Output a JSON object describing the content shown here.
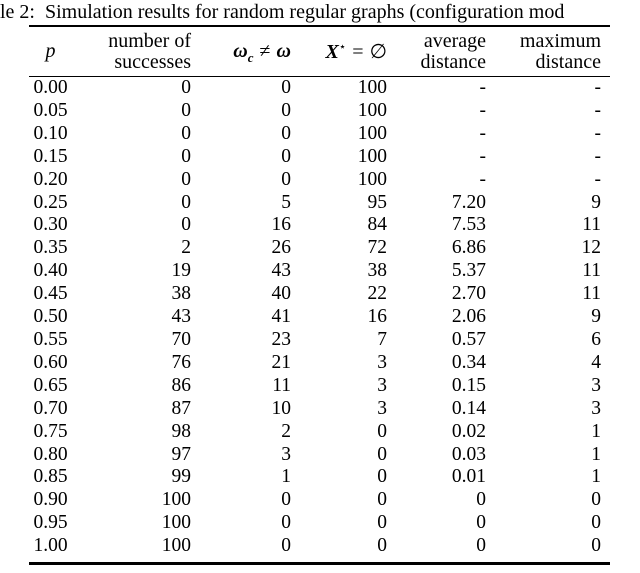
{
  "caption": "le 2:  Simulation results for random regular graphs (configuration mod",
  "table": {
    "headers": {
      "p": "p",
      "successes_line1": "number of",
      "successes_line2": "successes",
      "omega": {
        "lhs": "ω",
        "sub": "c",
        "op": "≠",
        "rhs": "ω"
      },
      "xstar": {
        "lhs": "X",
        "sup": "⋆",
        "op": "=",
        "rhs": "∅"
      },
      "avg_line1": "average",
      "avg_line2": "distance",
      "max_line1": "maximum",
      "max_line2": "distance"
    },
    "rows": [
      [
        "0.00",
        "0",
        "0",
        "100",
        "-",
        "-"
      ],
      [
        "0.05",
        "0",
        "0",
        "100",
        "-",
        "-"
      ],
      [
        "0.10",
        "0",
        "0",
        "100",
        "-",
        "-"
      ],
      [
        "0.15",
        "0",
        "0",
        "100",
        "-",
        "-"
      ],
      [
        "0.20",
        "0",
        "0",
        "100",
        "-",
        "-"
      ],
      [
        "0.25",
        "0",
        "5",
        "95",
        "7.20",
        "9"
      ],
      [
        "0.30",
        "0",
        "16",
        "84",
        "7.53",
        "11"
      ],
      [
        "0.35",
        "2",
        "26",
        "72",
        "6.86",
        "12"
      ],
      [
        "0.40",
        "19",
        "43",
        "38",
        "5.37",
        "11"
      ],
      [
        "0.45",
        "38",
        "40",
        "22",
        "2.70",
        "11"
      ],
      [
        "0.50",
        "43",
        "41",
        "16",
        "2.06",
        "9"
      ],
      [
        "0.55",
        "70",
        "23",
        "7",
        "0.57",
        "6"
      ],
      [
        "0.60",
        "76",
        "21",
        "3",
        "0.34",
        "4"
      ],
      [
        "0.65",
        "86",
        "11",
        "3",
        "0.15",
        "3"
      ],
      [
        "0.70",
        "87",
        "10",
        "3",
        "0.14",
        "3"
      ],
      [
        "0.75",
        "98",
        "2",
        "0",
        "0.02",
        "1"
      ],
      [
        "0.80",
        "97",
        "3",
        "0",
        "0.03",
        "1"
      ],
      [
        "0.85",
        "99",
        "1",
        "0",
        "0.01",
        "1"
      ],
      [
        "0.90",
        "100",
        "0",
        "0",
        "0",
        "0"
      ],
      [
        "0.95",
        "100",
        "0",
        "0",
        "0",
        "0"
      ],
      [
        "1.00",
        "100",
        "0",
        "0",
        "0",
        "0"
      ]
    ]
  }
}
